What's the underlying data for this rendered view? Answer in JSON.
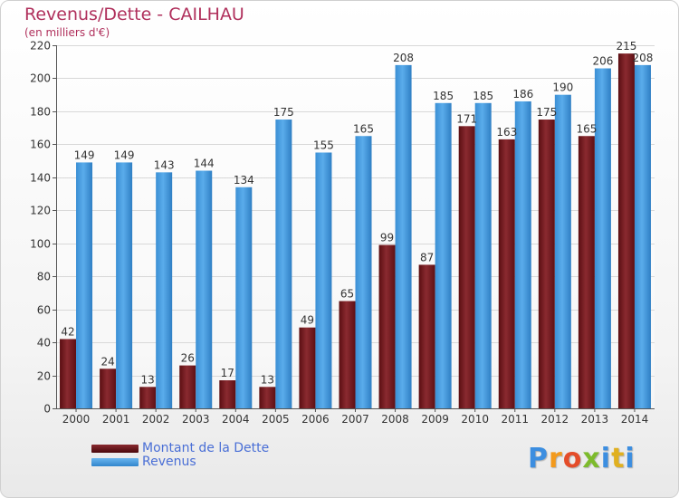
{
  "title": "Revenus/Dette - CAILHAU",
  "subtitle": "(en milliers d'€)",
  "logo_text": "Proxiti",
  "colors": {
    "debt": "#7a1a20",
    "revenue": "#4da2e2",
    "title": "#b0305c",
    "legend_text": "#4a6fd6"
  },
  "chart_data": {
    "type": "bar",
    "categories": [
      "2000",
      "2001",
      "2002",
      "2003",
      "2004",
      "2005",
      "2006",
      "2007",
      "2008",
      "2009",
      "2010",
      "2011",
      "2012",
      "2013",
      "2014"
    ],
    "series": [
      {
        "name": "Montant de la Dette",
        "values": [
          42,
          24,
          13,
          26,
          17,
          13,
          49,
          65,
          99,
          87,
          171,
          163,
          175,
          165,
          215
        ]
      },
      {
        "name": "Revenus",
        "values": [
          149,
          149,
          143,
          144,
          134,
          175,
          155,
          165,
          208,
          185,
          185,
          186,
          190,
          206,
          208
        ]
      }
    ],
    "ylim": [
      0,
      220
    ],
    "yticks": [
      0,
      20,
      40,
      60,
      80,
      100,
      120,
      140,
      160,
      180,
      200,
      220
    ],
    "grid": true,
    "legend_position": "bottom-left"
  }
}
